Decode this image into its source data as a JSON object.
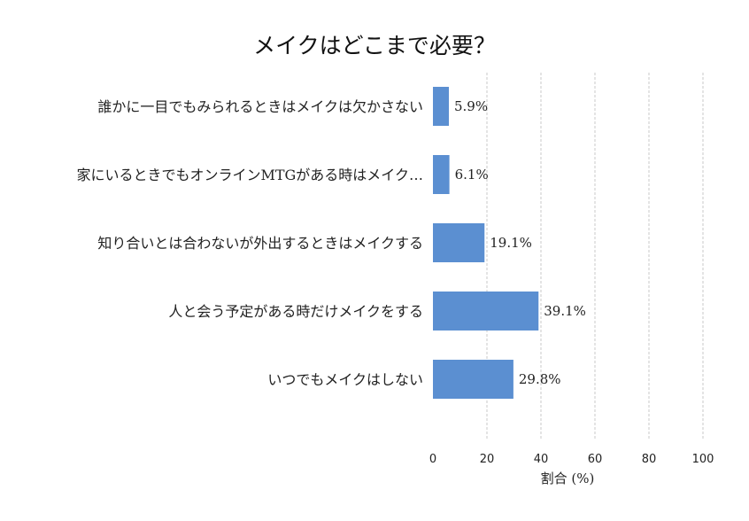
{
  "chart_data": {
    "type": "bar",
    "orientation": "horizontal",
    "title": "メイクはどこまで必要？",
    "xlabel": "割合 (%)",
    "ylabel": "",
    "xlim": [
      0,
      100
    ],
    "xticks": [
      0,
      20,
      40,
      60,
      80,
      100
    ],
    "grid": "vertical dashed",
    "bar_color": "#5b8fd1",
    "categories": [
      "誰かに一目でもみられるときはメイクは欠かさない",
      "家にいるときでもオンラインMTGがある時はメイク…",
      "知り合いとは合わないが外出するときはメイクする",
      "人と会う予定がある時だけメイクをする",
      "いつでもメイクはしない"
    ],
    "values": [
      5.9,
      6.1,
      19.1,
      39.1,
      29.8
    ],
    "value_labels": [
      "5.9%",
      "6.1%",
      "19.1%",
      "39.1%",
      "29.8%"
    ]
  }
}
